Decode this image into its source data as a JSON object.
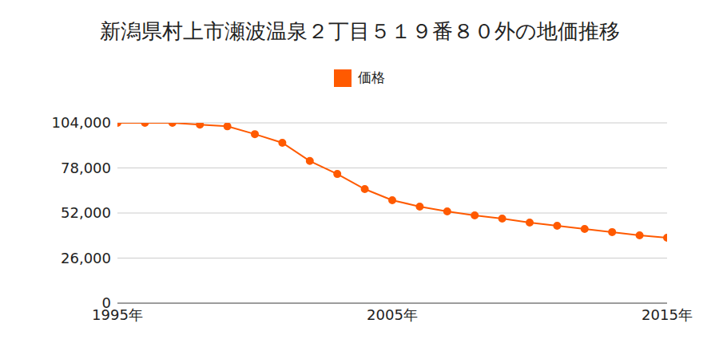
{
  "chart_data": {
    "type": "line",
    "title": "新潟県村上市瀬波温泉２丁目５１９番８０外の地価推移",
    "x": [
      1995,
      1996,
      1997,
      1998,
      1999,
      2000,
      2001,
      2002,
      2003,
      2004,
      2005,
      2006,
      2007,
      2008,
      2009,
      2010,
      2011,
      2012,
      2013,
      2014,
      2015
    ],
    "series": [
      {
        "name": "価格",
        "color": "#ff5a00",
        "marker": "circle",
        "line_style": "solid",
        "values": [
          104000,
          104000,
          104000,
          103000,
          102000,
          97500,
          92500,
          82000,
          74500,
          65800,
          59400,
          55700,
          52900,
          50600,
          48800,
          46500,
          44600,
          42800,
          41000,
          39100,
          37700
        ]
      }
    ],
    "xlim": [
      1995,
      2015
    ],
    "xticks": [
      {
        "value": 1995,
        "label": "1995年"
      },
      {
        "value": 2005,
        "label": "2005年"
      },
      {
        "value": 2015,
        "label": "2015年"
      }
    ],
    "ylim": [
      0,
      104000
    ],
    "yticks": [
      0,
      {
        "value": 26000,
        "label": "26,000"
      },
      {
        "value": 52000,
        "label": "52,000"
      },
      {
        "value": 78000,
        "label": "78,000"
      },
      {
        "value": 104000,
        "label": "104,000"
      }
    ],
    "grid": true,
    "legend": "top"
  }
}
